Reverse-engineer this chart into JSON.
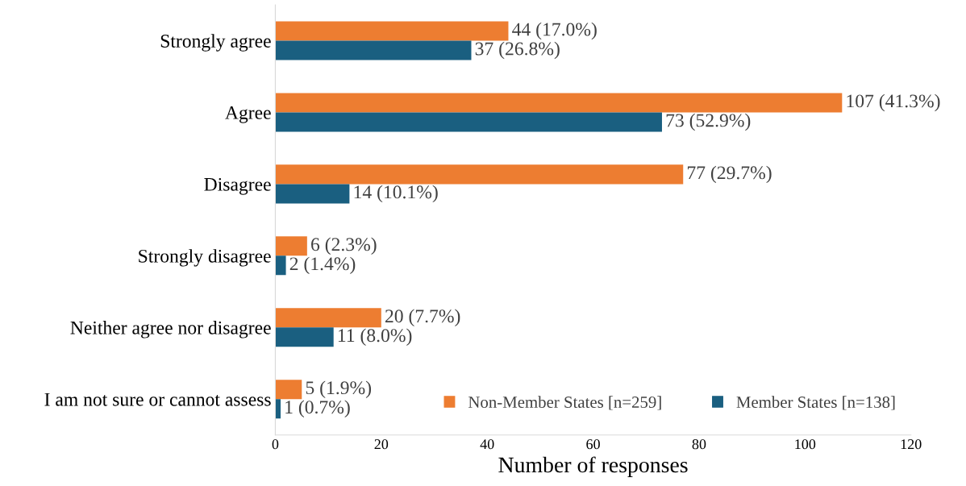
{
  "chart_data": {
    "type": "bar",
    "orientation": "horizontal",
    "xlabel": "Number of responses",
    "categories": [
      "Strongly agree",
      "Agree",
      "Disagree",
      "Strongly disagree",
      "Neither agree nor disagree",
      "I am not sure or cannot assess"
    ],
    "series": [
      {
        "name": "Non-Member States [n=259]",
        "color": "#ed7d31",
        "values": [
          44,
          107,
          77,
          6,
          20,
          5
        ],
        "value_labels": [
          "44 (17.0%)",
          "107 (41.3%)",
          "77 (29.7%)",
          "6 (2.3%)",
          "20 (7.7%)",
          "5 (1.9%)"
        ]
      },
      {
        "name": "Member States [n=138]",
        "color": "#1a5f80",
        "values": [
          37,
          73,
          14,
          2,
          11,
          1
        ],
        "value_labels": [
          "37 (26.8%)",
          "73 (52.9%)",
          "14 (10.1%)",
          "2 (1.4%)",
          "11 (8.0%)",
          "1 (0.7%)"
        ]
      }
    ],
    "xlim": [
      0,
      120
    ],
    "xticks": [
      0,
      20,
      40,
      60,
      80,
      100,
      120
    ],
    "grid": false,
    "legend": "bottom right"
  }
}
